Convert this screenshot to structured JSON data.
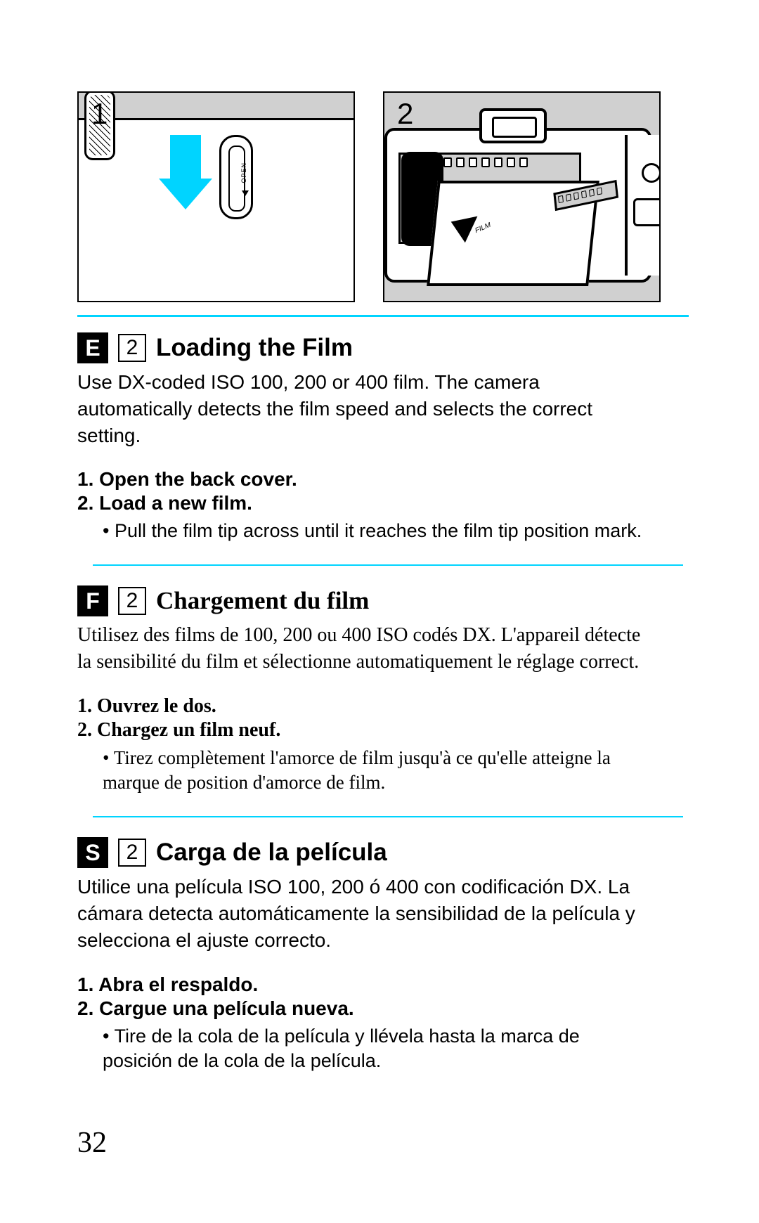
{
  "page_number": "32",
  "accent_color": "#00d4ff",
  "figures": {
    "fig1": {
      "label": "1",
      "open_text": "OPEN"
    },
    "fig2": {
      "label": "2",
      "film_label": "FILM"
    }
  },
  "sections": [
    {
      "lang_code": "E",
      "step_num": "2",
      "title": "Loading the Film",
      "font": "sans",
      "intro": "Use DX-coded ISO 100, 200 or 400 film. The camera automatically detects the film speed and selects the correct setting.",
      "steps": [
        "1. Open the back cover.",
        "2. Load a new film."
      ],
      "bullet": "Pull the film tip across until it reaches the film tip position mark."
    },
    {
      "lang_code": "F",
      "step_num": "2",
      "title": "Chargement du film",
      "font": "serif",
      "intro": "Utilisez des films de 100, 200 ou 400 ISO codés DX. L'appareil détecte la sensibilité du film et sélectionne automatiquement le réglage correct.",
      "steps": [
        "1. Ouvrez le dos.",
        "2. Chargez un film neuf."
      ],
      "bullet": "Tirez complètement l'amorce de film jusqu'à ce qu'elle atteigne la marque de position d'amorce de film."
    },
    {
      "lang_code": "S",
      "step_num": "2",
      "title": "Carga de la película",
      "font": "sans",
      "intro": "Utilice una película ISO 100, 200 ó 400 con codificación DX. La cámara detecta automáticamente la sensibilidad de la película y selecciona el ajuste correcto.",
      "steps": [
        "1. Abra el respaldo.",
        "2. Cargue una película nueva."
      ],
      "bullet": "Tire de la cola de la película y llévela hasta la marca de posición de la cola de la película."
    }
  ]
}
